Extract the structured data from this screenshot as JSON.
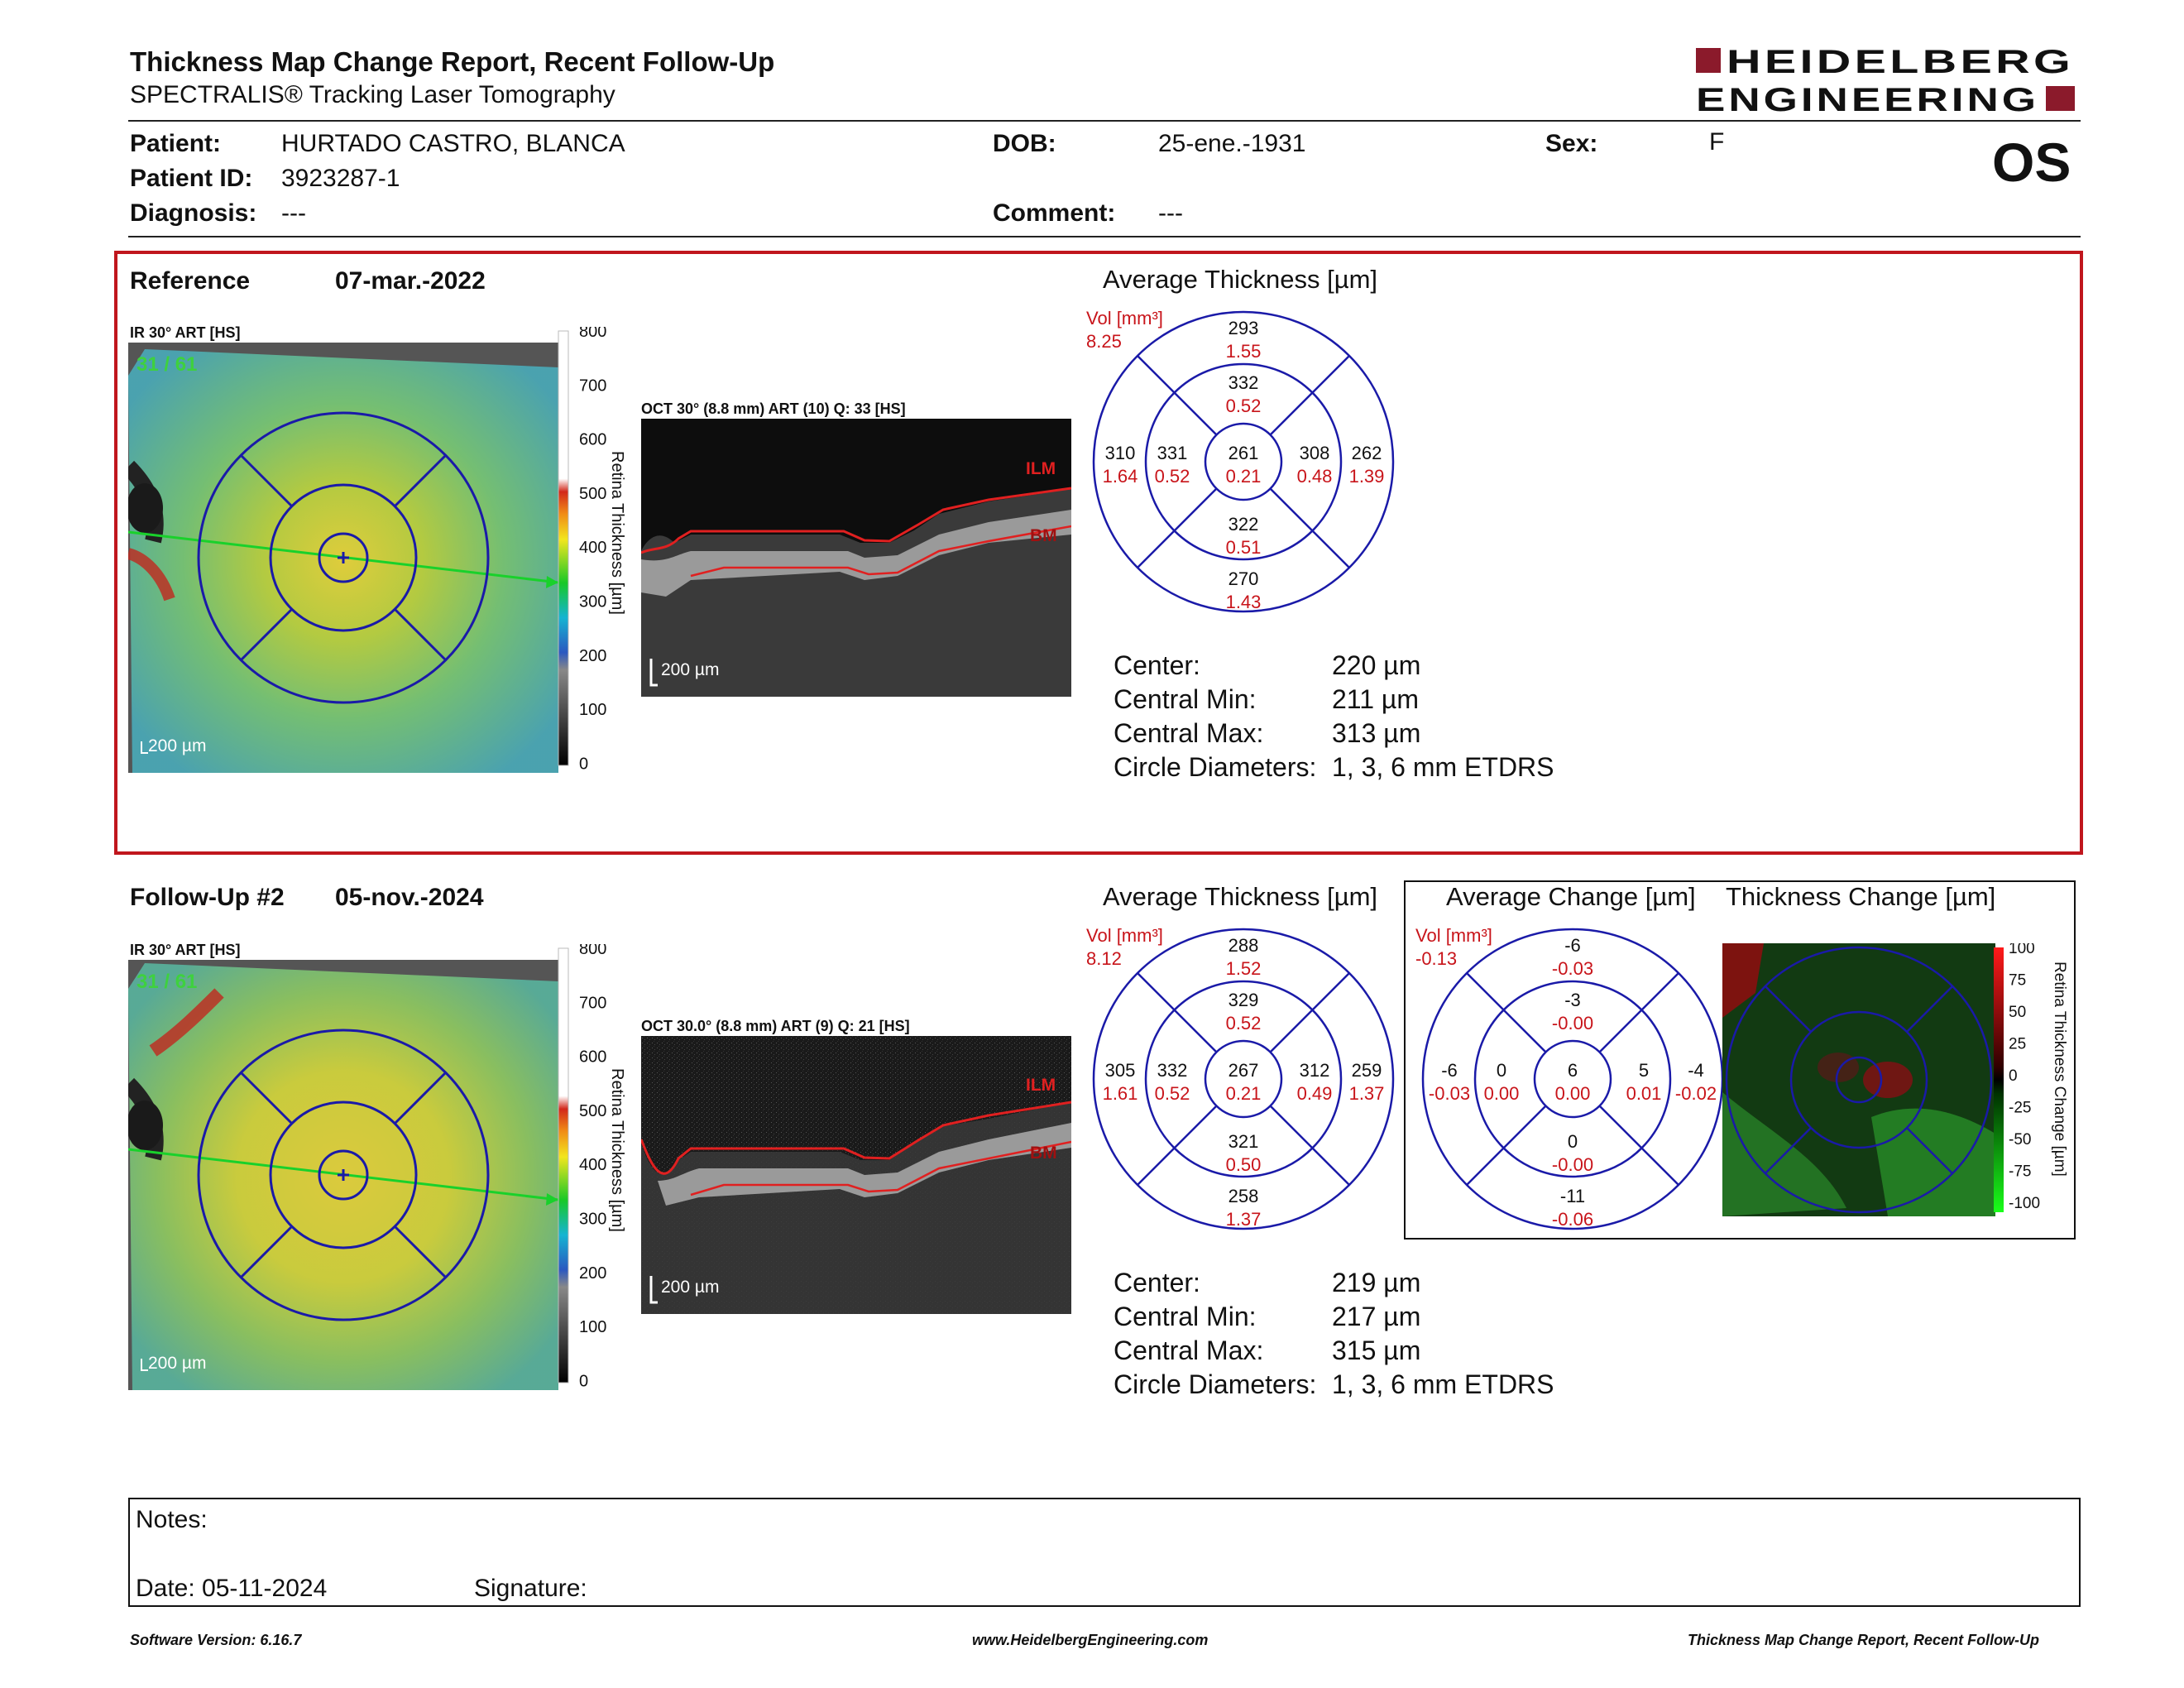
{
  "header": {
    "title": "Thickness Map Change Report, Recent Follow-Up",
    "subtitle": "SPECTRALIS® Tracking Laser Tomography",
    "logo_line1": "HEIDELBERG",
    "logo_line2": "ENGINEERING",
    "brand_color": "#8b1a2b"
  },
  "patient": {
    "patient_label": "Patient:",
    "patient_value": "HURTADO CASTRO, BLANCA",
    "id_label": "Patient ID:",
    "id_value": "3923287-1",
    "diagnosis_label": "Diagnosis:",
    "diagnosis_value": "---",
    "dob_label": "DOB:",
    "dob_value": "25-ene.-1931",
    "comment_label": "Comment:",
    "comment_value": "---",
    "sex_label": "Sex:",
    "sex_value": "F",
    "eye": "OS"
  },
  "reference": {
    "label": "Reference",
    "date": "07-mar.-2022",
    "ir_label": "IR 30° ART [HS]",
    "frame": "31 / 61",
    "scale": "200 µm",
    "oct_label": "OCT 30° (8.8 mm) ART (10) Q: 33 [HS]",
    "oct_scale": "200 µm",
    "ilm": "ILM",
    "bm": "BM",
    "thickness_heading": "Average Thickness [µm]",
    "vol_label": "Vol [mm³]",
    "vol_value": "8.25",
    "grid": {
      "sup_outer": [
        "293",
        "1.55"
      ],
      "sup_inner": [
        "332",
        "0.52"
      ],
      "temp_outer": [
        "310",
        "1.64"
      ],
      "temp_inner": [
        "331",
        "0.52"
      ],
      "center": [
        "261",
        "0.21"
      ],
      "nas_inner": [
        "308",
        "0.48"
      ],
      "nas_outer": [
        "262",
        "1.39"
      ],
      "inf_inner": [
        "322",
        "0.51"
      ],
      "inf_outer": [
        "270",
        "1.43"
      ]
    },
    "stats": [
      {
        "label": "Center:",
        "value": "220 µm"
      },
      {
        "label": "Central Min:",
        "value": "211 µm"
      },
      {
        "label": "Central Max:",
        "value": "313 µm"
      },
      {
        "label": "Circle Diameters:",
        "value": "1, 3, 6 mm ETDRS"
      }
    ]
  },
  "followup": {
    "label": "Follow-Up #2",
    "date": "05-nov.-2024",
    "ir_label": "IR 30° ART [HS]",
    "frame": "31 / 61",
    "scale": "200 µm",
    "oct_label": "OCT 30.0° (8.8 mm) ART (9) Q: 21 [HS]",
    "oct_scale": "200 µm",
    "ilm": "ILM",
    "bm": "BM",
    "thickness_heading": "Average Thickness [µm]",
    "vol_label": "Vol [mm³]",
    "vol_value": "8.12",
    "grid": {
      "sup_outer": [
        "288",
        "1.52"
      ],
      "sup_inner": [
        "329",
        "0.52"
      ],
      "temp_outer": [
        "305",
        "1.61"
      ],
      "temp_inner": [
        "332",
        "0.52"
      ],
      "center": [
        "267",
        "0.21"
      ],
      "nas_inner": [
        "312",
        "0.49"
      ],
      "nas_outer": [
        "259",
        "1.37"
      ],
      "inf_inner": [
        "321",
        "0.50"
      ],
      "inf_outer": [
        "258",
        "1.37"
      ]
    },
    "stats": [
      {
        "label": "Center:",
        "value": "219 µm"
      },
      {
        "label": "Central Min:",
        "value": "217 µm"
      },
      {
        "label": "Central Max:",
        "value": "315 µm"
      },
      {
        "label": "Circle Diameters:",
        "value": "1, 3, 6 mm ETDRS"
      }
    ]
  },
  "change": {
    "heading": "Average Change [µm]",
    "map_heading": "Thickness Change [µm]",
    "vol_label": "Vol [mm³]",
    "vol_value": "-0.13",
    "grid": {
      "sup_outer": [
        "-6",
        "-0.03"
      ],
      "sup_inner": [
        "-3",
        "-0.00"
      ],
      "temp_outer": [
        "-6",
        "-0.03"
      ],
      "temp_inner": [
        "0",
        "0.00"
      ],
      "center": [
        "6",
        "0.00"
      ],
      "nas_inner": [
        "5",
        "0.01"
      ],
      "nas_outer": [
        "-4",
        "-0.02"
      ],
      "inf_inner": [
        "0",
        "-0.00"
      ],
      "inf_outer": [
        "-11",
        "-0.06"
      ]
    },
    "colorbar_ticks": [
      "100",
      "75",
      "50",
      "25",
      "0",
      "-25",
      "-50",
      "-75",
      "-100"
    ],
    "colorbar_title": "Retina Thickness Change [µm]"
  },
  "thickness_colorbar": {
    "ticks": [
      "800",
      "700",
      "600",
      "500",
      "400",
      "300",
      "200",
      "100",
      "0"
    ],
    "title": "Retina Thickness [µm]"
  },
  "notes": {
    "label": "Notes:",
    "date_label": "Date: 05-11-2024",
    "signature_label": "Signature:"
  },
  "footer": {
    "left": "Software Version: 6.16.7",
    "center": "www.HeidelbergEngineering.com",
    "right": "Thickness Map Change Report, Recent Follow-Up"
  },
  "colors": {
    "frame_red": "#c0161d",
    "etdrs_blue": "#1a1aa8",
    "value_red": "#c8141a"
  }
}
